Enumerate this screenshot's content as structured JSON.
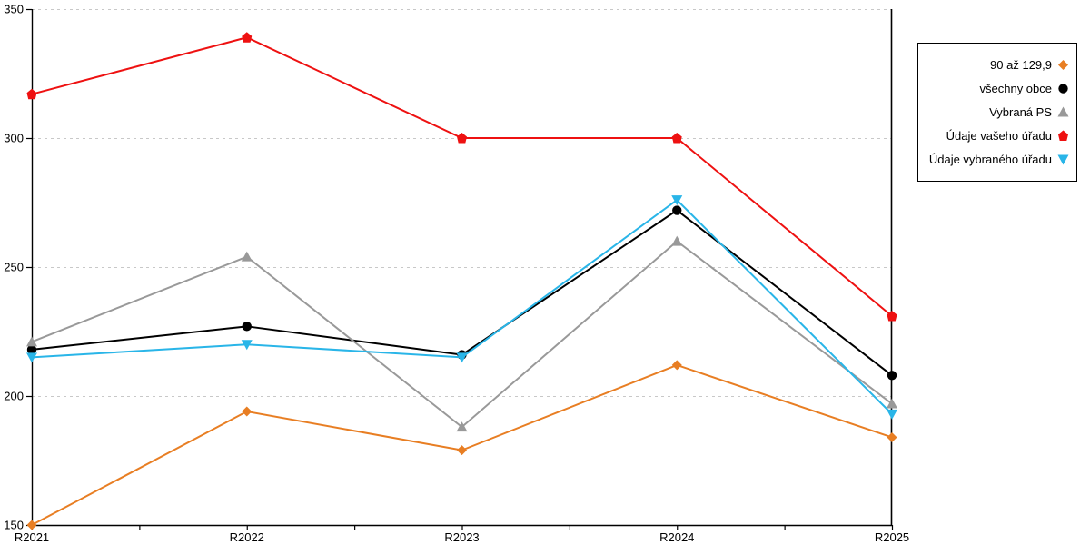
{
  "chart_data": {
    "type": "line",
    "title": "",
    "xlabel": "",
    "ylabel": "",
    "categories": [
      "R2021",
      "R2022",
      "R2023",
      "R2024",
      "R2025"
    ],
    "series": [
      {
        "name": "90 až 129,9",
        "marker": "diamond",
        "color": "#E87E23",
        "values": [
          150,
          194,
          179,
          212,
          184
        ]
      },
      {
        "name": "všechny obce",
        "marker": "circle",
        "color": "#000000",
        "values": [
          218,
          227,
          216,
          272,
          208
        ]
      },
      {
        "name": "Vybraná PS",
        "marker": "triangle-up",
        "color": "#999999",
        "values": [
          221,
          254,
          188,
          260,
          197
        ]
      },
      {
        "name": "Údaje vašeho úřadu",
        "marker": "pentagon",
        "color": "#EE1111",
        "values": [
          317,
          339,
          300,
          300,
          231
        ]
      },
      {
        "name": "Údaje vybraného úřadu",
        "marker": "triangle-down",
        "color": "#29B5E8",
        "values": [
          215,
          220,
          215,
          276,
          193
        ]
      }
    ],
    "ylim": [
      150,
      350
    ],
    "ytick_step": 50,
    "y_tick_labels": [
      "150",
      "200",
      "250",
      "300",
      "350"
    ],
    "grid": "horizontal-dashed",
    "gridline_color": "#C8C8C8",
    "axis_color": "#000000",
    "legend_position": "top-right",
    "legend_border_color": "#000000"
  }
}
